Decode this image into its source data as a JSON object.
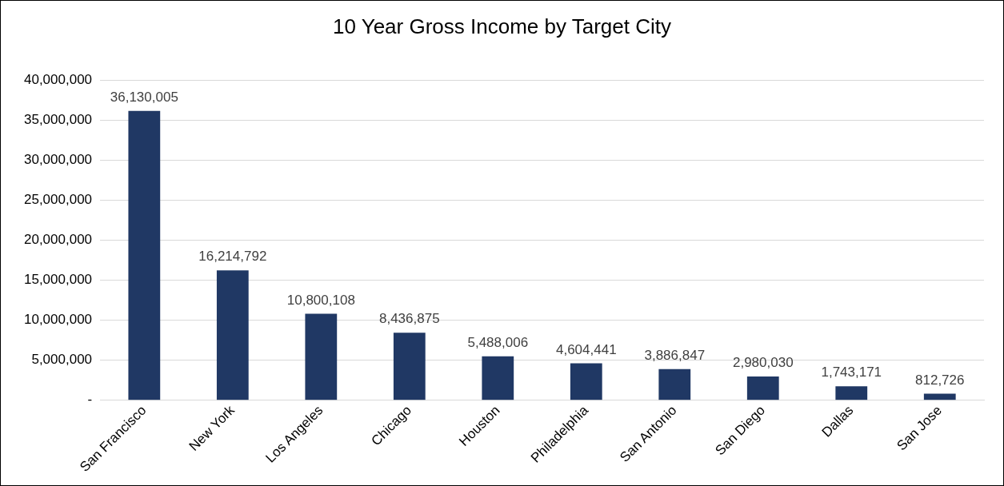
{
  "chart_data": {
    "type": "bar",
    "title": "10 Year Gross Income by Target City",
    "categories": [
      "San Francisco",
      "New York",
      "Los Angeles",
      "Chicago",
      "Houston",
      "Philadelphia",
      "San Antonio",
      "San Diego",
      "Dallas",
      "San Jose"
    ],
    "values": [
      36130005,
      16214792,
      10800108,
      8436875,
      5488006,
      4604441,
      3886847,
      2980030,
      1743171,
      812726
    ],
    "value_labels": [
      "36,130,005",
      "16,214,792",
      "10,800,108",
      "8,436,875",
      "5,488,006",
      "4,604,441",
      "3,886,847",
      "2,980,030",
      "1,743,171",
      "812,726"
    ],
    "color": "#203864",
    "ylim": [
      0,
      40000000
    ],
    "yticks": [
      {
        "value": 0,
        "label": "-"
      },
      {
        "value": 5000000,
        "label": "5,000,000"
      },
      {
        "value": 10000000,
        "label": "10,000,000"
      },
      {
        "value": 15000000,
        "label": "15,000,000"
      },
      {
        "value": 20000000,
        "label": "20,000,000"
      },
      {
        "value": 25000000,
        "label": "25,000,000"
      },
      {
        "value": 30000000,
        "label": "30,000,000"
      },
      {
        "value": 35000000,
        "label": "35,000,000"
      },
      {
        "value": 40000000,
        "label": "40,000,000"
      }
    ],
    "grid": "y"
  }
}
